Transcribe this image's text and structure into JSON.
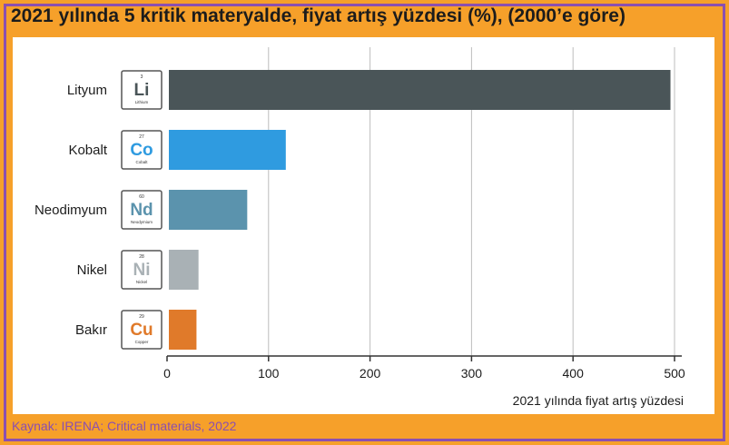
{
  "title": "2021 yılında 5 kritik materyalde, fiyat artış yüzdesi (%), (2000’e göre)",
  "source": "Kaynak: IRENA; Critical materials, 2022",
  "chart_data": {
    "type": "bar",
    "orientation": "horizontal",
    "title": "2021 yılında 5 kritik materyalde, fiyat artış yüzdesi (%), (2000’e göre)",
    "xlabel": "2021 yılında fiyat artış yüzdesi",
    "ylabel": "",
    "xlim": [
      0,
      500
    ],
    "xticks": [
      0,
      100,
      200,
      300,
      400,
      500
    ],
    "grid": true,
    "categories": [
      "Lityum",
      "Kobalt",
      "Neodimyum",
      "Nikel",
      "Bakır"
    ],
    "values": [
      496,
      117,
      79,
      31,
      29
    ],
    "colors": [
      "#4a5558",
      "#2f9be0",
      "#5b93ad",
      "#a9b1b5",
      "#e07a2a"
    ],
    "elements": [
      {
        "number": "3",
        "symbol": "Li",
        "name": "Lithium",
        "color": "#4a5558"
      },
      {
        "number": "27",
        "symbol": "Co",
        "name": "Cobalt",
        "color": "#2f9be0"
      },
      {
        "number": "60",
        "symbol": "Nd",
        "name": "Neodymium",
        "color": "#5b93ad"
      },
      {
        "number": "28",
        "symbol": "Ni",
        "name": "Nickel",
        "color": "#a9b1b5"
      },
      {
        "number": "29",
        "symbol": "Cu",
        "name": "Copper",
        "color": "#e07a2a"
      }
    ]
  }
}
